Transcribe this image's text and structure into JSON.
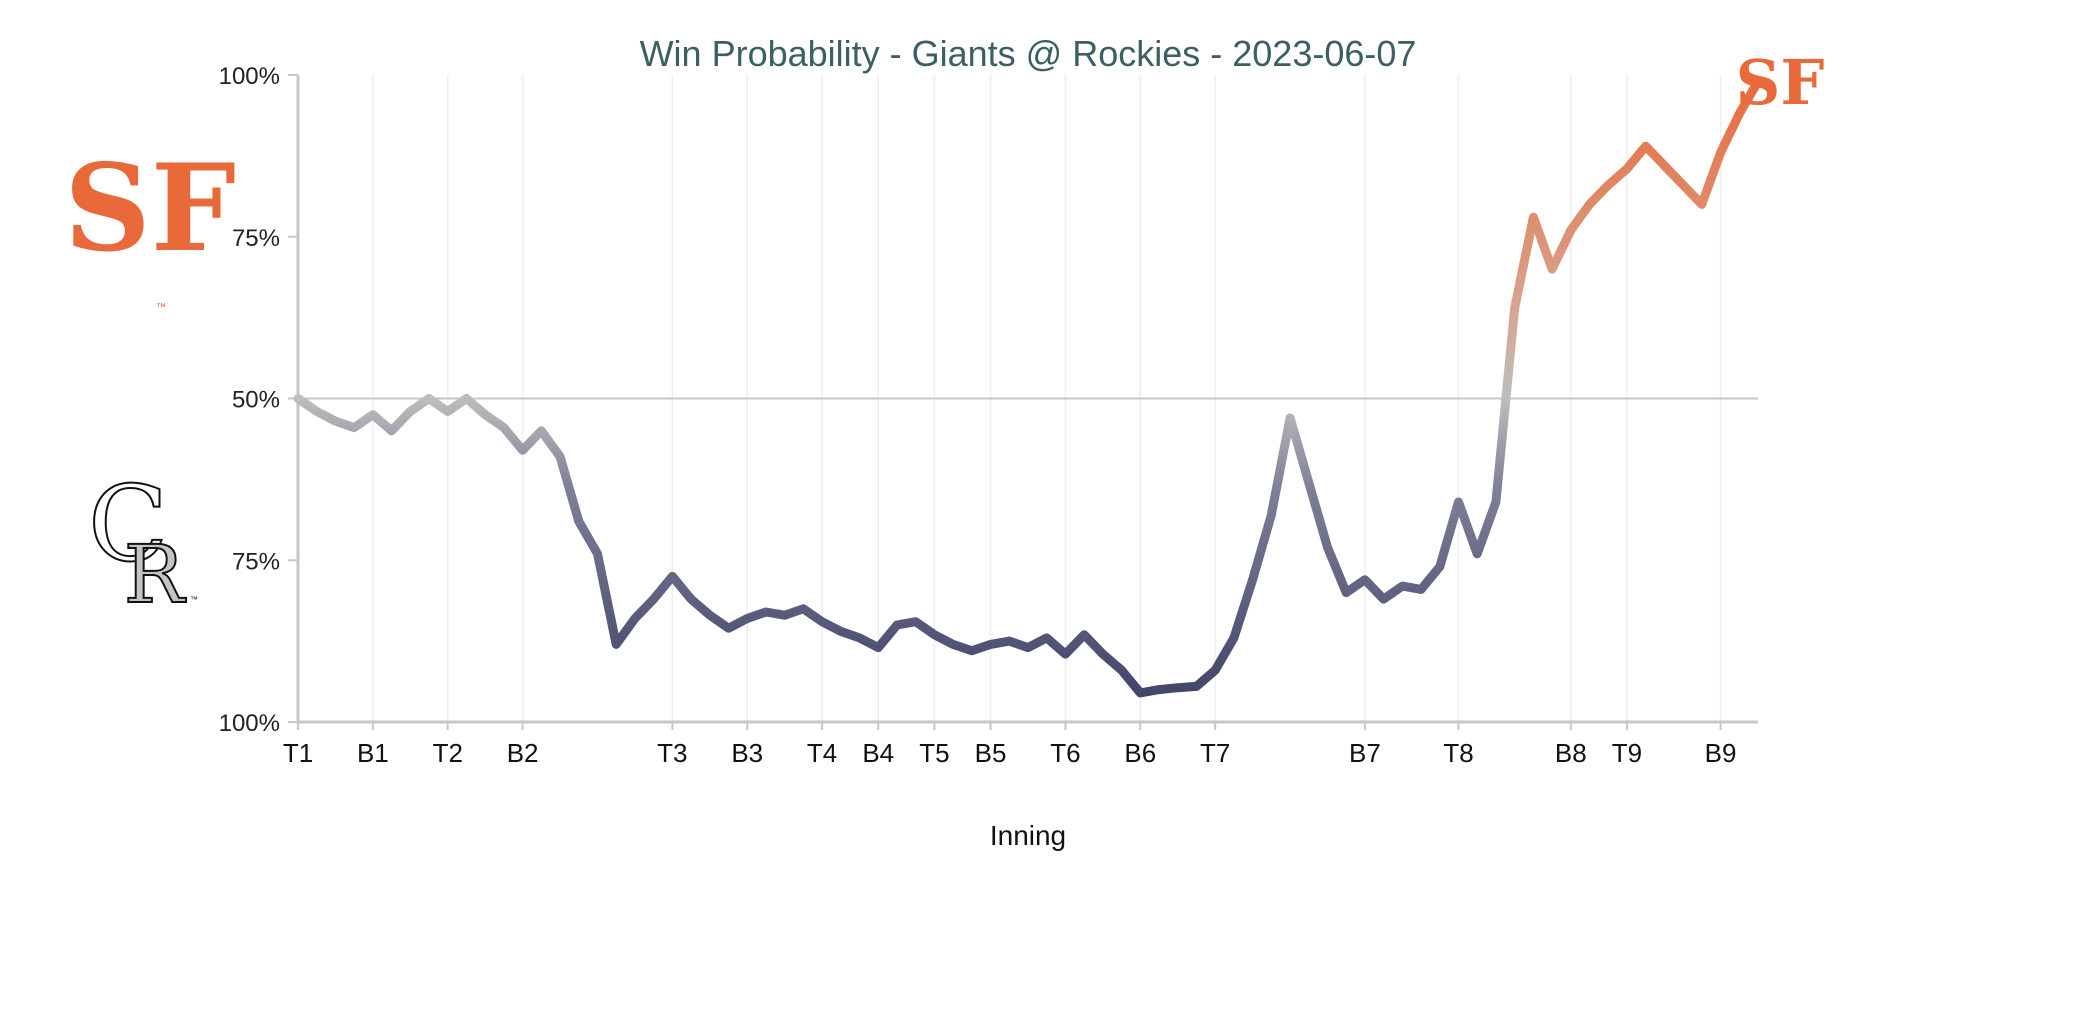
{
  "chart_data": {
    "type": "line",
    "title": "Win Probability - Giants @ Rockies - 2023-06-07",
    "xlabel": "Inning",
    "ylabel": "",
    "y_ticks": [
      "100%",
      "75%",
      "50%",
      "75%",
      "100%"
    ],
    "y_tick_values": [
      1.0,
      0.75,
      0.5,
      0.25,
      0.0
    ],
    "ylim": [
      0,
      1
    ],
    "xlim": [
      0,
      78
    ],
    "x_ticks": [
      {
        "label": "T1",
        "x": 0
      },
      {
        "label": "B1",
        "x": 4
      },
      {
        "label": "T2",
        "x": 8
      },
      {
        "label": "B2",
        "x": 12
      },
      {
        "label": "T3",
        "x": 20
      },
      {
        "label": "B3",
        "x": 24
      },
      {
        "label": "T4",
        "x": 28
      },
      {
        "label": "B4",
        "x": 31
      },
      {
        "label": "T5",
        "x": 34
      },
      {
        "label": "B5",
        "x": 37
      },
      {
        "label": "T6",
        "x": 41
      },
      {
        "label": "B6",
        "x": 45
      },
      {
        "label": "T7",
        "x": 49
      },
      {
        "label": "B7",
        "x": 57
      },
      {
        "label": "T8",
        "x": 62
      },
      {
        "label": "B8",
        "x": 68
      },
      {
        "label": "T9",
        "x": 71
      },
      {
        "label": "B9",
        "x": 76
      }
    ],
    "reference_line": 0.5,
    "series": [
      {
        "x": [
          0,
          1,
          2,
          3,
          4,
          5,
          6,
          7,
          8,
          9,
          10,
          11,
          12,
          13,
          14,
          15,
          16,
          17,
          18,
          19,
          20,
          21,
          22,
          23,
          24,
          25,
          26,
          27,
          28,
          29,
          30,
          31,
          32,
          33,
          34,
          35,
          36,
          37,
          38,
          39,
          40,
          41,
          42,
          43,
          44,
          45,
          46,
          47,
          48,
          49,
          50,
          51,
          52,
          53,
          54,
          55,
          56,
          57,
          58,
          59,
          60,
          61,
          62,
          63,
          64,
          65,
          66,
          67,
          68,
          69,
          70,
          71,
          72,
          73,
          74,
          75,
          76,
          77,
          78
        ],
        "y": [
          0.5,
          0.48,
          0.465,
          0.455,
          0.475,
          0.45,
          0.48,
          0.5,
          0.48,
          0.5,
          0.475,
          0.455,
          0.42,
          0.45,
          0.41,
          0.31,
          0.26,
          0.12,
          0.16,
          0.19,
          0.225,
          0.19,
          0.165,
          0.145,
          0.16,
          0.17,
          0.165,
          0.175,
          0.155,
          0.14,
          0.13,
          0.115,
          0.15,
          0.155,
          0.135,
          0.12,
          0.11,
          0.12,
          0.125,
          0.115,
          0.13,
          0.105,
          0.135,
          0.105,
          0.08,
          0.045,
          0.05,
          0.053,
          0.055,
          0.08,
          0.13,
          0.22,
          0.32,
          0.47,
          0.37,
          0.27,
          0.2,
          0.22,
          0.19,
          0.21,
          0.205,
          0.24,
          0.34,
          0.26,
          0.34,
          0.64,
          0.78,
          0.7,
          0.76,
          0.8,
          0.83,
          0.855,
          0.89,
          0.86,
          0.83,
          0.8,
          0.88,
          0.94,
          0.99
        ]
      }
    ],
    "colors": {
      "giants": "#e8693a",
      "rockies": "#3b3d63",
      "neutral": "#bdbdbd",
      "title": "#3b5f63",
      "axis": "#c7c7c7",
      "grid": "#eeeeee"
    },
    "logos": {
      "giants_top": "giants-sf-logo",
      "rockies_bottom": "rockies-cr-logo",
      "giants_end": "giants-sf-logo"
    },
    "logo_text": {
      "sf": "SF",
      "cr_c": "C",
      "cr_r": "R",
      "tm": "™"
    }
  }
}
